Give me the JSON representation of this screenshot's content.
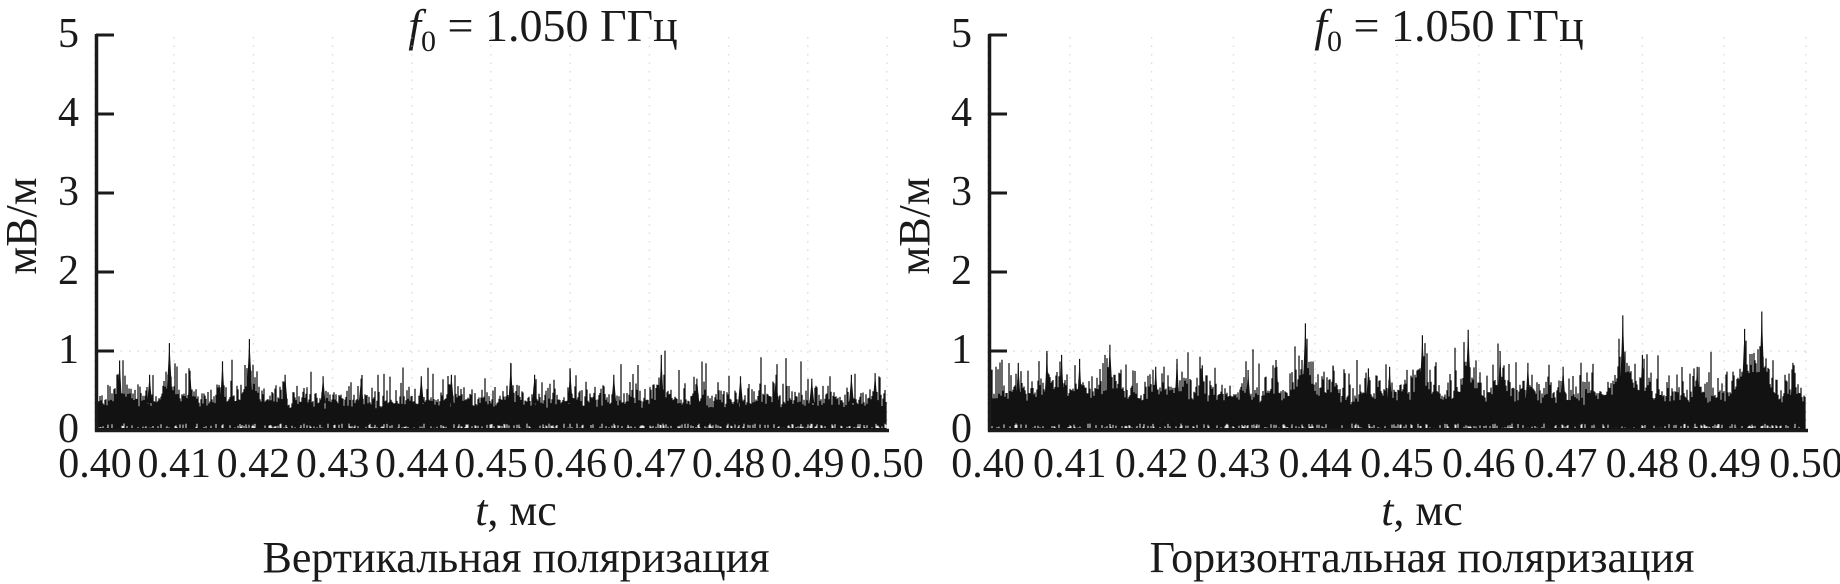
{
  "figure": {
    "background": "#ffffff",
    "ink_color": "#1a1a1a",
    "grid_dot_color": "#bfbfbf"
  },
  "chart_data": [
    {
      "type": "line",
      "panel": "left",
      "title_f": "f",
      "title_sub": "0",
      "title_rest": " = 1.050 ГГц",
      "ylabel": "мВ/м",
      "xlabel_t": "t",
      "xlabel_rest": ", мс",
      "caption": "Вертикальная поляризация",
      "xlim": [
        0.4,
        0.5
      ],
      "ylim": [
        0,
        5
      ],
      "x_tick_labels": [
        "0.40",
        "0.41",
        "0.42",
        "0.43",
        "0.44",
        "0.45",
        "0.46",
        "0.47",
        "0.48",
        "0.49",
        "0.50"
      ],
      "y_tick_labels": [
        "0",
        "1",
        "2",
        "3",
        "4",
        "5"
      ],
      "grid": "faint dotted at ticks",
      "legend": "none",
      "noise_band": {
        "core_base": 0.27,
        "core_jitter": 0.1,
        "fuzz_scale": 0.1,
        "burst_prob": 0.05,
        "burst_amp": 0.25,
        "clamp": 0.92
      },
      "spikes": [
        [
          0.4031,
          0.88
        ],
        [
          0.4069,
          0.7
        ],
        [
          0.4094,
          1.1
        ],
        [
          0.412,
          0.75
        ],
        [
          0.4161,
          0.87
        ],
        [
          0.4195,
          1.15
        ],
        [
          0.424,
          0.7
        ],
        [
          0.4288,
          0.68
        ],
        [
          0.4336,
          0.65
        ],
        [
          0.4412,
          0.68
        ],
        [
          0.445,
          0.7
        ],
        [
          0.4525,
          0.85
        ],
        [
          0.4555,
          0.7
        ],
        [
          0.46,
          0.75
        ],
        [
          0.4655,
          0.7
        ],
        [
          0.4715,
          0.95
        ],
        [
          0.476,
          0.65
        ],
        [
          0.4815,
          0.68
        ],
        [
          0.486,
          0.7
        ],
        [
          0.4905,
          0.65
        ],
        [
          0.4955,
          0.7
        ],
        [
          0.4985,
          0.72
        ]
      ]
    },
    {
      "type": "line",
      "panel": "right",
      "title_f": "f",
      "title_sub": "0",
      "title_rest": " = 1.050 ГГц",
      "ylabel": "мВ/м",
      "xlabel_t": "t",
      "xlabel_rest": ", мс",
      "caption": "Горизонтальная поляризация",
      "xlim": [
        0.4,
        0.5
      ],
      "ylim": [
        0,
        5
      ],
      "x_tick_labels": [
        "0.40",
        "0.41",
        "0.42",
        "0.43",
        "0.44",
        "0.45",
        "0.46",
        "0.47",
        "0.48",
        "0.49",
        "0.50"
      ],
      "y_tick_labels": [
        "0",
        "1",
        "2",
        "3",
        "4",
        "5"
      ],
      "grid": "faint dotted at ticks",
      "legend": "none",
      "noise_band": {
        "core_base": 0.31,
        "core_jitter": 0.12,
        "fuzz_scale": 0.12,
        "burst_prob": 0.07,
        "burst_amp": 0.3,
        "clamp": 1.0
      },
      "spikes": [
        [
          0.4037,
          0.85
        ],
        [
          0.4072,
          1.0
        ],
        [
          0.409,
          0.95
        ],
        [
          0.4112,
          0.9
        ],
        [
          0.4149,
          1.08
        ],
        [
          0.4205,
          0.8
        ],
        [
          0.4231,
          0.9
        ],
        [
          0.4262,
          0.82
        ],
        [
          0.4318,
          0.76
        ],
        [
          0.4353,
          0.8
        ],
        [
          0.4388,
          1.35
        ],
        [
          0.4422,
          0.8
        ],
        [
          0.4465,
          0.78
        ],
        [
          0.4491,
          0.8
        ],
        [
          0.4531,
          1.2
        ],
        [
          0.4587,
          1.27
        ],
        [
          0.4626,
          1.0
        ],
        [
          0.466,
          0.85
        ],
        [
          0.4703,
          0.8
        ],
        [
          0.4776,
          1.45
        ],
        [
          0.48,
          0.95
        ],
        [
          0.4867,
          0.8
        ],
        [
          0.4925,
          1.28
        ],
        [
          0.4946,
          1.5
        ],
        [
          0.4984,
          0.85
        ]
      ]
    }
  ]
}
